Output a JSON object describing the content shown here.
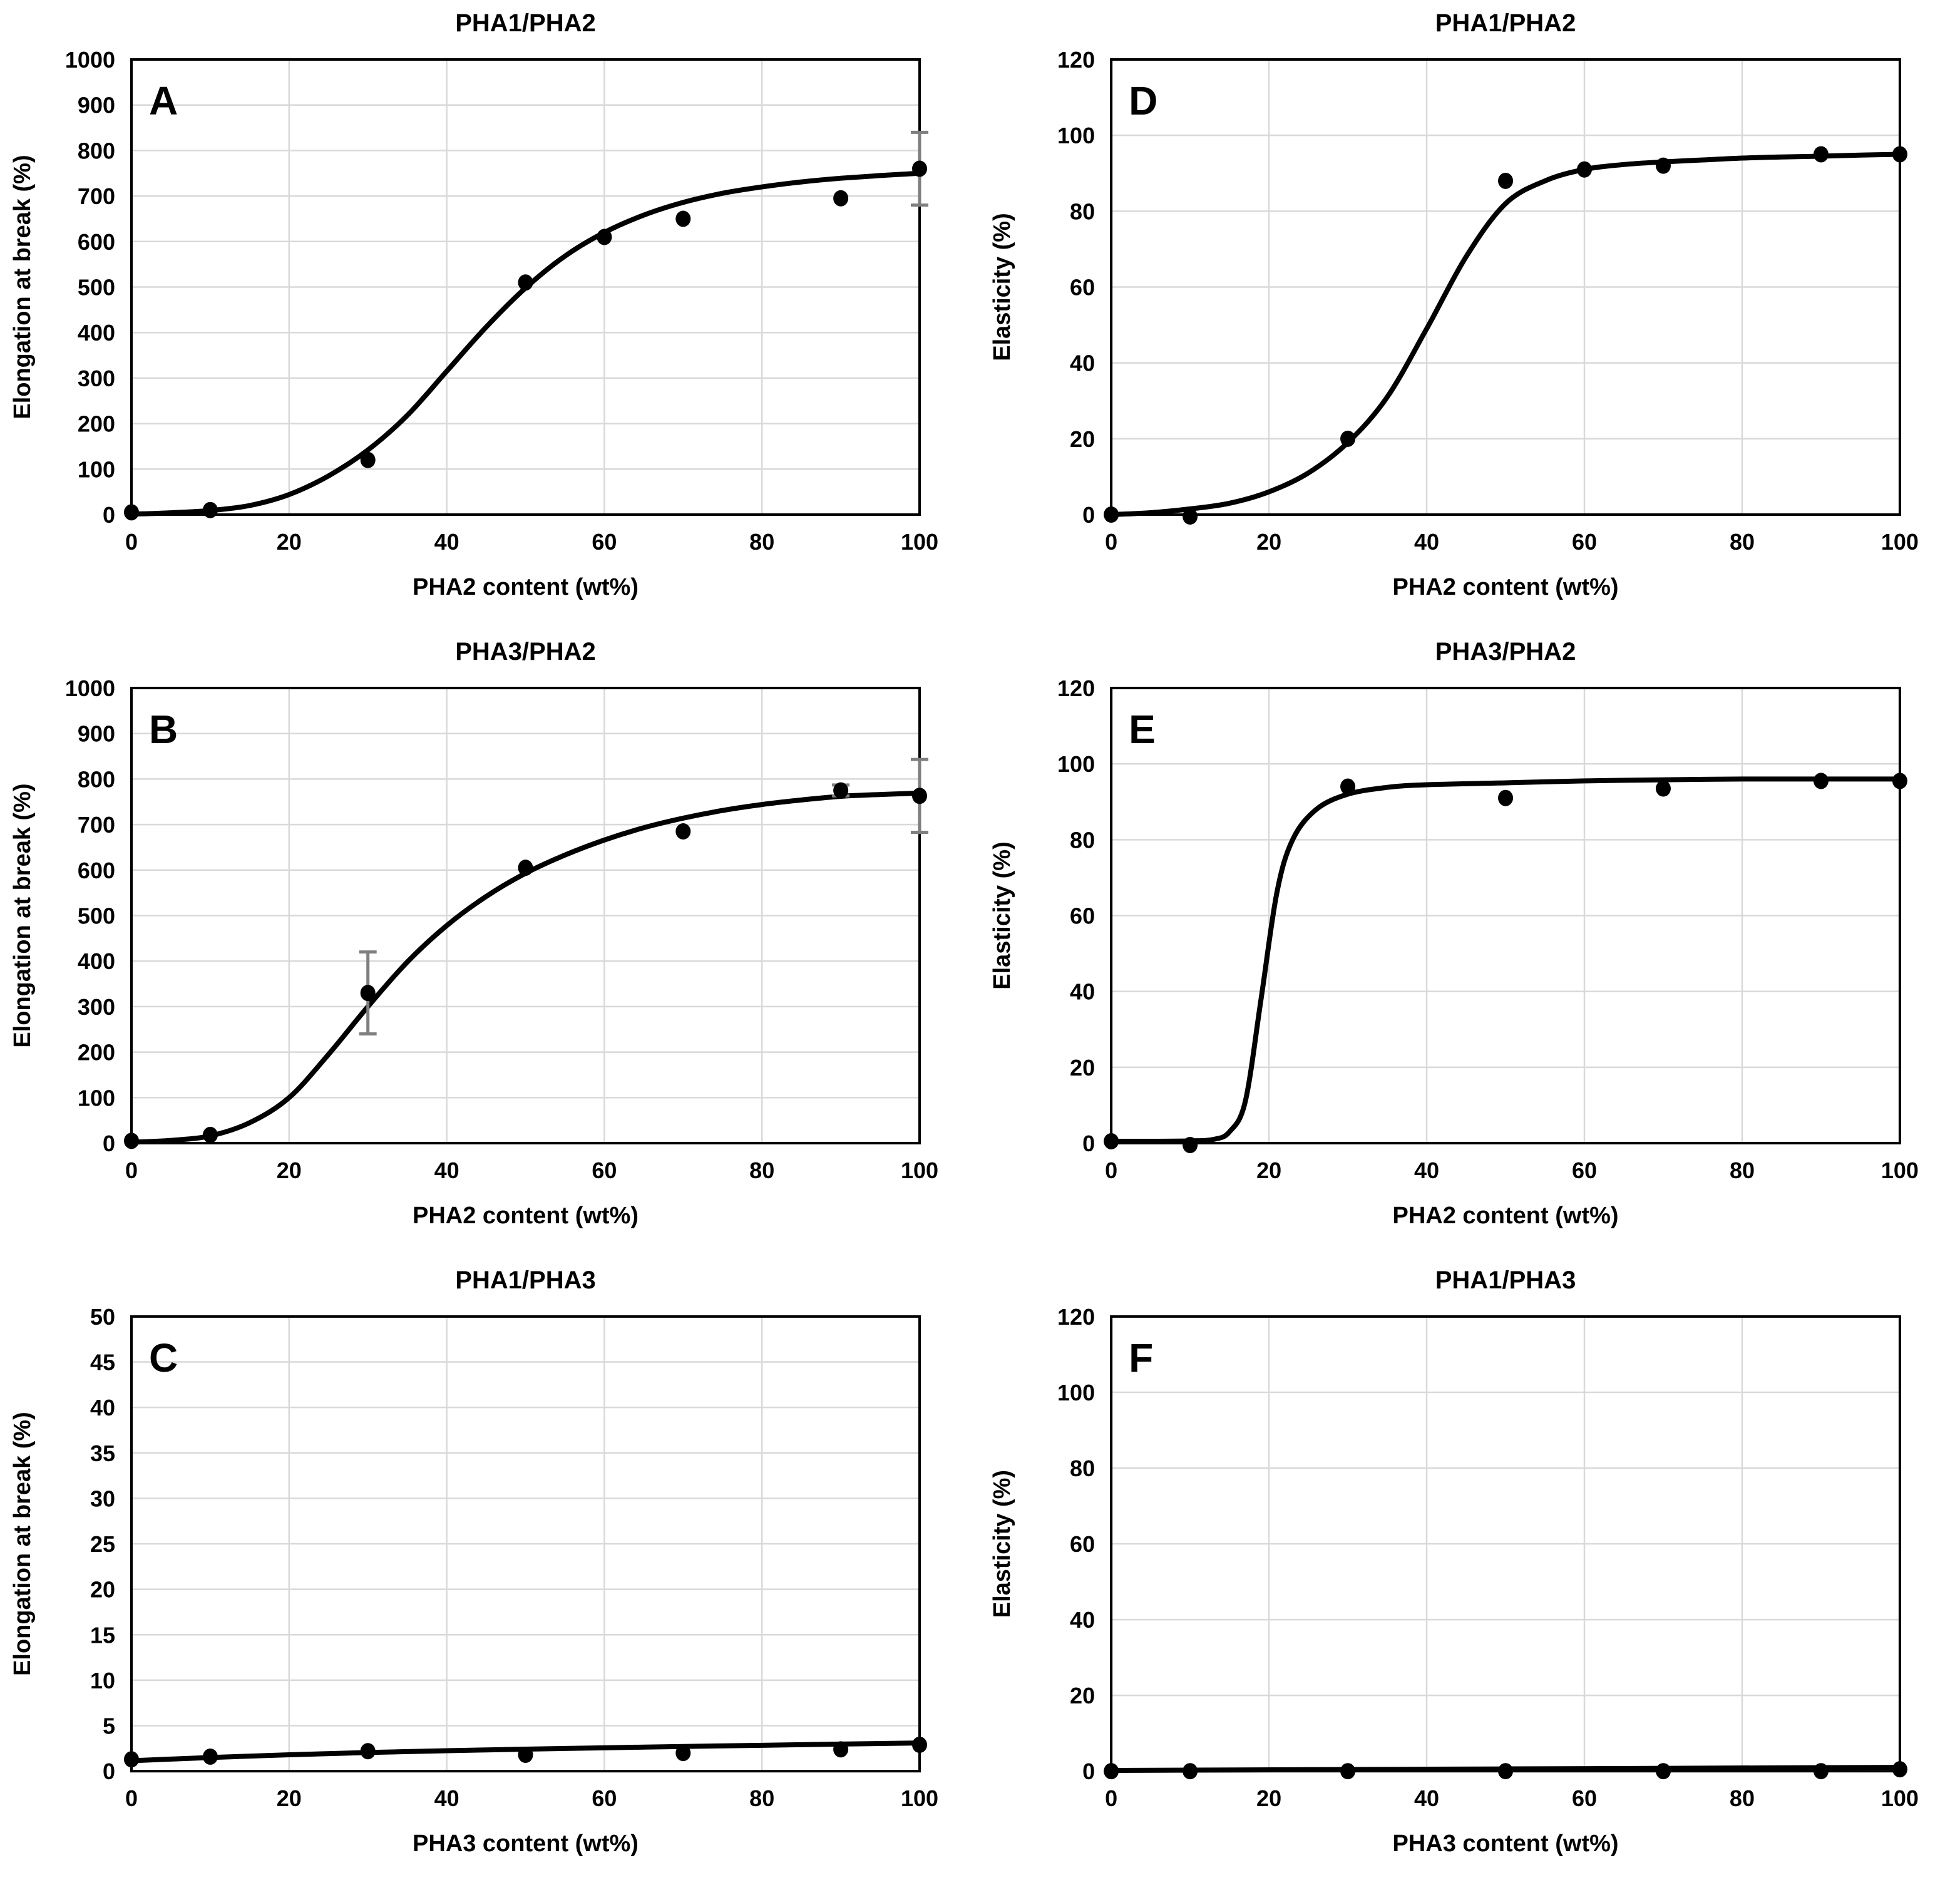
{
  "figure": {
    "background": "#ffffff",
    "columns": 2,
    "rows": 3,
    "colors": {
      "line": "#000000",
      "point": "#000000",
      "grid": "#d9d9d9",
      "border": "#000000",
      "error_bar": "#7f7f7f",
      "text": "#000000"
    }
  },
  "chart_data": [
    {
      "id": "A",
      "letter": "A",
      "type": "scatter",
      "title": "PHA1/PHA2",
      "xlabel": "PHA2 content (wt%)",
      "ylabel": "Elongation at break (%)",
      "xlim": [
        0,
        100
      ],
      "ylim": [
        0,
        1000
      ],
      "x_ticks": [
        0,
        20,
        40,
        60,
        80,
        100
      ],
      "y_ticks": [
        0,
        100,
        200,
        300,
        400,
        500,
        600,
        700,
        800,
        900,
        1000
      ],
      "grid": true,
      "legend_position": "none",
      "points": {
        "x": [
          0,
          10,
          30,
          50,
          60,
          70,
          90,
          100
        ],
        "y": [
          5,
          10,
          120,
          510,
          610,
          650,
          695,
          760
        ]
      },
      "error_bars": [
        {
          "x": 100,
          "y": 760,
          "plus": 80,
          "minus": 80
        }
      ],
      "fit_curve": {
        "x": [
          0,
          5,
          10,
          15,
          20,
          25,
          30,
          35,
          40,
          45,
          50,
          55,
          60,
          65,
          70,
          75,
          80,
          85,
          90,
          95,
          100
        ],
        "y": [
          1,
          4,
          9,
          20,
          44,
          85,
          142,
          218,
          315,
          412,
          498,
          568,
          620,
          658,
          686,
          706,
          720,
          731,
          739,
          745,
          750
        ]
      }
    },
    {
      "id": "D",
      "letter": "D",
      "type": "scatter",
      "title": "PHA1/PHA2",
      "xlabel": "PHA2 content (wt%)",
      "ylabel": "Elasticity (%)",
      "xlim": [
        0,
        100
      ],
      "ylim": [
        0,
        120
      ],
      "x_ticks": [
        0,
        20,
        40,
        60,
        80,
        100
      ],
      "y_ticks": [
        0,
        20,
        40,
        60,
        80,
        100,
        120
      ],
      "grid": true,
      "legend_position": "none",
      "points": {
        "x": [
          0,
          10,
          30,
          50,
          60,
          70,
          90,
          100
        ],
        "y": [
          0,
          -0.5,
          20,
          88,
          91,
          92,
          95,
          95
        ]
      },
      "error_bars": [],
      "fit_curve": {
        "x": [
          0,
          5,
          10,
          15,
          20,
          25,
          30,
          35,
          40,
          45,
          50,
          55,
          60,
          65,
          70,
          75,
          80,
          85,
          90,
          95,
          100
        ],
        "y": [
          0,
          0.5,
          1.5,
          3,
          6,
          11,
          19,
          31,
          49,
          68,
          82,
          88,
          91,
          92.3,
          93,
          93.5,
          94,
          94.3,
          94.5,
          94.8,
          95
        ]
      }
    },
    {
      "id": "B",
      "letter": "B",
      "type": "scatter",
      "title": "PHA3/PHA2",
      "xlabel": "PHA2 content (wt%)",
      "ylabel": "Elongation at break (%)",
      "xlim": [
        0,
        100
      ],
      "ylim": [
        0,
        1000
      ],
      "x_ticks": [
        0,
        20,
        40,
        60,
        80,
        100
      ],
      "y_ticks": [
        0,
        100,
        200,
        300,
        400,
        500,
        600,
        700,
        800,
        900,
        1000
      ],
      "grid": true,
      "legend_position": "none",
      "points": {
        "x": [
          0,
          10,
          30,
          50,
          70,
          90,
          100
        ],
        "y": [
          5,
          18,
          330,
          605,
          685,
          775,
          763
        ]
      },
      "error_bars": [
        {
          "x": 30,
          "y": 330,
          "plus": 90,
          "minus": 90
        },
        {
          "x": 90,
          "y": 775,
          "plus": 12,
          "minus": 12
        },
        {
          "x": 100,
          "y": 763,
          "plus": 80,
          "minus": 80
        }
      ],
      "fit_curve": {
        "x": [
          0,
          5,
          10,
          15,
          20,
          25,
          30,
          35,
          40,
          45,
          50,
          55,
          60,
          65,
          70,
          75,
          80,
          85,
          90,
          95,
          100
        ],
        "y": [
          2,
          6,
          16,
          45,
          100,
          195,
          300,
          398,
          478,
          542,
          593,
          633,
          666,
          693,
          714,
          731,
          744,
          754,
          762,
          766,
          769
        ]
      }
    },
    {
      "id": "E",
      "letter": "E",
      "type": "scatter",
      "title": "PHA3/PHA2",
      "xlabel": "PHA2 content (wt%)",
      "ylabel": "Elasticity (%)",
      "xlim": [
        0,
        100
      ],
      "ylim": [
        0,
        120
      ],
      "x_ticks": [
        0,
        20,
        40,
        60,
        80,
        100
      ],
      "y_ticks": [
        0,
        20,
        40,
        60,
        80,
        100,
        120
      ],
      "grid": true,
      "legend_position": "none",
      "points": {
        "x": [
          0,
          10,
          30,
          50,
          70,
          90,
          100
        ],
        "y": [
          0.5,
          -0.5,
          94,
          91,
          93.5,
          95.5,
          95.5
        ]
      },
      "error_bars": [],
      "fit_curve": {
        "x": [
          0,
          5,
          10,
          13,
          15,
          17,
          19,
          21,
          23,
          26,
          30,
          35,
          40,
          50,
          60,
          70,
          80,
          90,
          100
        ],
        "y": [
          0.5,
          0.5,
          0.6,
          1,
          3,
          11,
          38,
          66,
          80,
          88,
          92,
          93.8,
          94.5,
          95,
          95.5,
          95.8,
          96,
          96,
          96
        ]
      }
    },
    {
      "id": "C",
      "letter": "C",
      "type": "scatter",
      "title": "PHA1/PHA3",
      "xlabel": "PHA3 content (wt%)",
      "ylabel": "Elongation at break (%)",
      "xlim": [
        0,
        100
      ],
      "ylim": [
        0,
        50
      ],
      "x_ticks": [
        0,
        20,
        40,
        60,
        80,
        100
      ],
      "y_ticks": [
        0,
        5,
        10,
        15,
        20,
        25,
        30,
        35,
        40,
        45,
        50
      ],
      "grid": true,
      "legend_position": "none",
      "points": {
        "x": [
          0,
          10,
          30,
          50,
          70,
          90,
          100
        ],
        "y": [
          1.3,
          1.6,
          2.2,
          1.8,
          2.0,
          2.4,
          2.9
        ]
      },
      "error_bars": [],
      "fit_curve": {
        "x": [
          0,
          10,
          20,
          30,
          40,
          50,
          60,
          70,
          80,
          90,
          100
        ],
        "y": [
          1.15,
          1.5,
          1.8,
          2.05,
          2.25,
          2.42,
          2.57,
          2.72,
          2.85,
          2.98,
          3.1
        ]
      }
    },
    {
      "id": "F",
      "letter": "F",
      "type": "scatter",
      "title": "PHA1/PHA3",
      "xlabel": "PHA3 content (wt%)",
      "ylabel": "Elasticity (%)",
      "xlim": [
        0,
        100
      ],
      "ylim": [
        0,
        120
      ],
      "x_ticks": [
        0,
        20,
        40,
        60,
        80,
        100
      ],
      "y_ticks": [
        0,
        20,
        40,
        60,
        80,
        100,
        120
      ],
      "grid": true,
      "legend_position": "none",
      "points": {
        "x": [
          0,
          10,
          30,
          50,
          70,
          90,
          100
        ],
        "y": [
          0,
          0,
          0,
          0,
          0,
          0,
          0.5
        ]
      },
      "error_bars": [],
      "fit_curve": {
        "x": [
          0,
          25,
          50,
          75,
          100
        ],
        "y": [
          0.2,
          0.4,
          0.6,
          0.8,
          1.0
        ]
      }
    }
  ]
}
